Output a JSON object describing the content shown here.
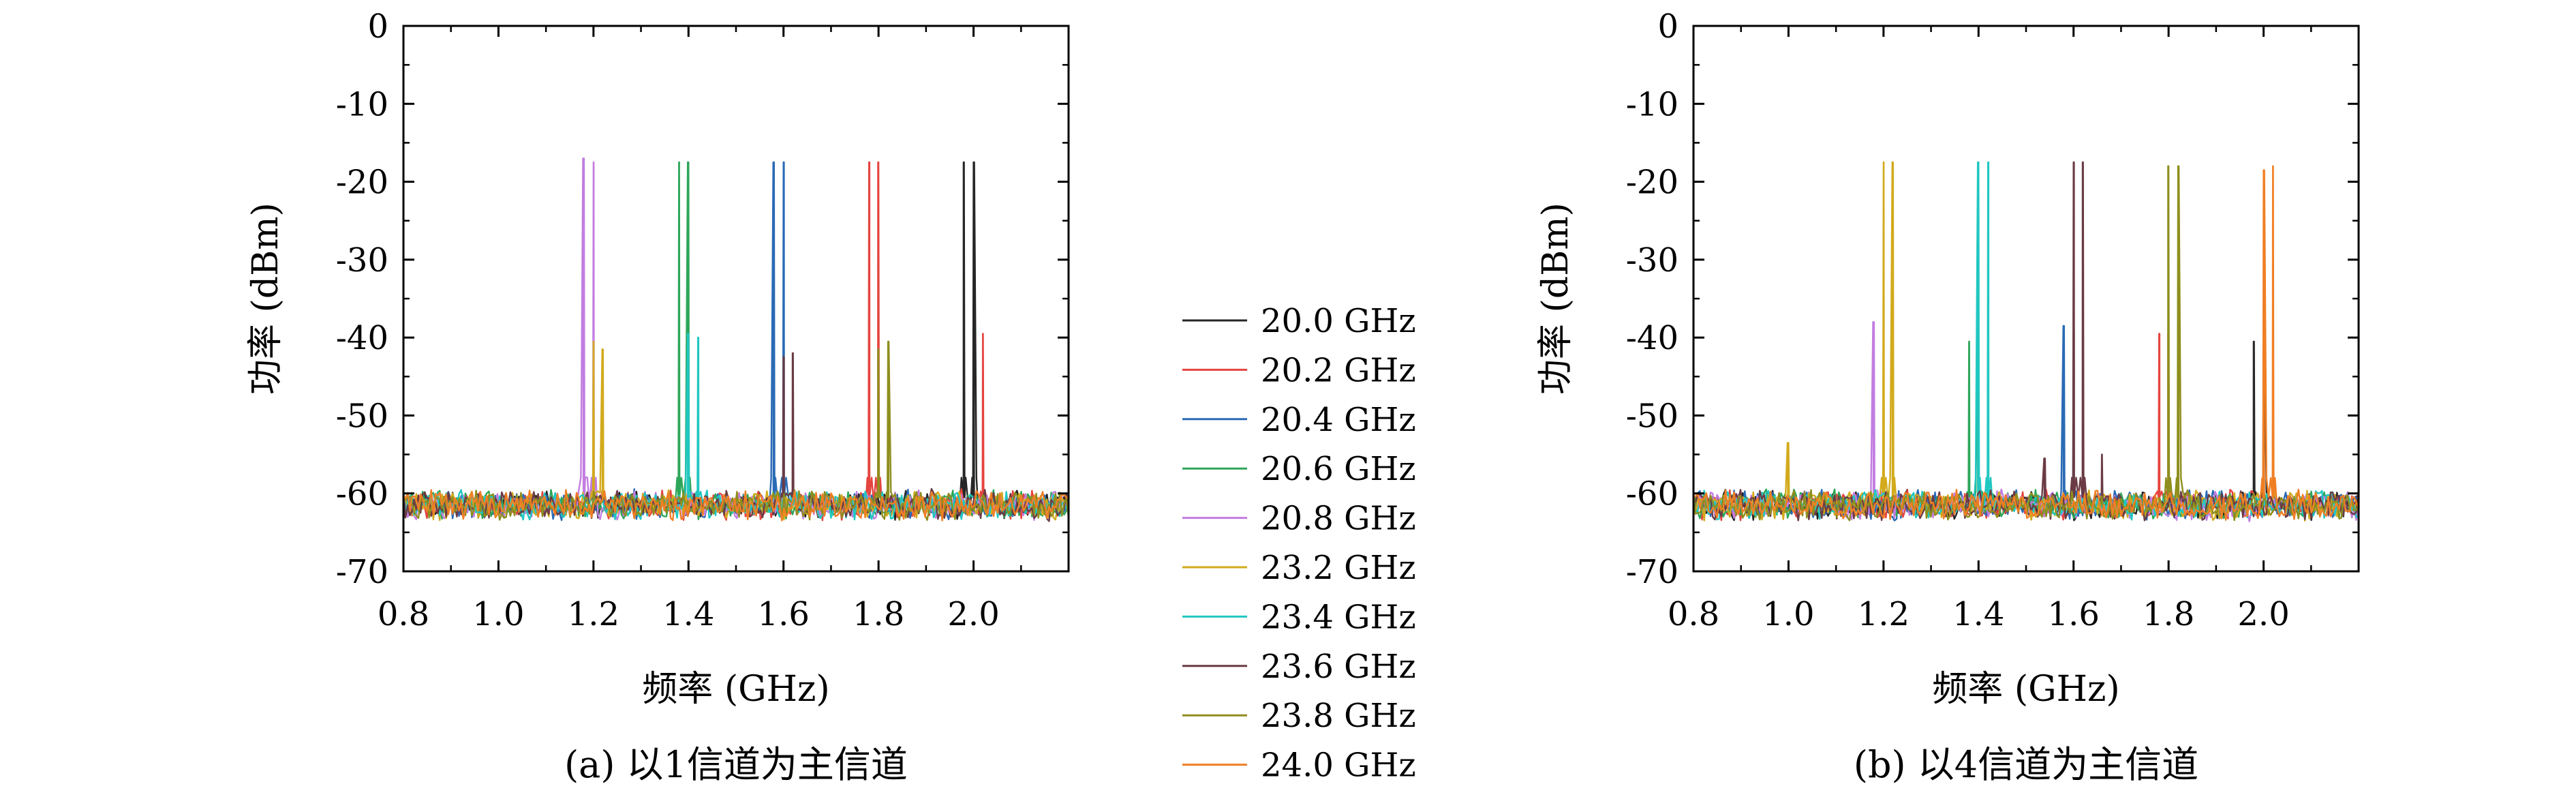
{
  "chart_data": [
    {
      "type": "line",
      "caption": "(a) 以1信道为主信道",
      "xlabel": "频率 (GHz)",
      "ylabel": "功率 (dBm)",
      "xlim": [
        0.8,
        2.2
      ],
      "ylim": [
        -70,
        0
      ],
      "xticks": [
        "0.8",
        "1.0",
        "1.2",
        "1.4",
        "1.6",
        "1.8",
        "2.0"
      ],
      "yticks": [
        "0",
        "-10",
        "-20",
        "-30",
        "-40",
        "-50",
        "-60",
        "-70"
      ],
      "noise_floor_dbm": -61.5,
      "grid": false,
      "series": [
        {
          "name": "20.0 GHz",
          "color": "#262626",
          "peaks": [
            {
              "x": 1.98,
              "y": -17.5
            },
            {
              "x": 2.0,
              "y": -17.5
            }
          ]
        },
        {
          "name": "20.2 GHz",
          "color": "#e5443f",
          "peaks": [
            {
              "x": 1.78,
              "y": -17.5
            },
            {
              "x": 1.8,
              "y": -17.5
            },
            {
              "x": 2.02,
              "y": -39.5
            }
          ]
        },
        {
          "name": "20.4 GHz",
          "color": "#2a6ab5",
          "peaks": [
            {
              "x": 1.58,
              "y": -17.5
            },
            {
              "x": 1.6,
              "y": -17.5
            }
          ]
        },
        {
          "name": "20.6 GHz",
          "color": "#2ea65a",
          "peaks": [
            {
              "x": 1.38,
              "y": -17.5
            },
            {
              "x": 1.4,
              "y": -17.5
            }
          ]
        },
        {
          "name": "20.8 GHz",
          "color": "#c27de0",
          "peaks": [
            {
              "x": 1.18,
              "y": -17
            },
            {
              "x": 1.2,
              "y": -17.5
            }
          ]
        },
        {
          "name": "23.2 GHz",
          "color": "#d2aa1c",
          "peaks": [
            {
              "x": 1.2,
              "y": -40.5
            },
            {
              "x": 1.22,
              "y": -41.5
            }
          ]
        },
        {
          "name": "23.4 GHz",
          "color": "#21c7c1",
          "peaks": [
            {
              "x": 1.4,
              "y": -39.5
            },
            {
              "x": 1.42,
              "y": -40
            }
          ]
        },
        {
          "name": "23.6 GHz",
          "color": "#6a3b44",
          "peaks": [
            {
              "x": 1.6,
              "y": -42.5
            },
            {
              "x": 1.62,
              "y": -42
            }
          ]
        },
        {
          "name": "23.8 GHz",
          "color": "#8e8e1e",
          "peaks": [
            {
              "x": 1.8,
              "y": -41.5
            },
            {
              "x": 1.82,
              "y": -40.5
            }
          ]
        },
        {
          "name": "24.0 GHz",
          "color": "#f07f24",
          "peaks": []
        }
      ]
    },
    {
      "type": "line",
      "caption": "(b) 以4信道为主信道",
      "xlabel": "频率 (GHz)",
      "ylabel": "功率 (dBm)",
      "xlim": [
        0.8,
        2.2
      ],
      "ylim": [
        -70,
        0
      ],
      "xticks": [
        "0.8",
        "1.0",
        "1.2",
        "1.4",
        "1.6",
        "1.8",
        "2.0"
      ],
      "yticks": [
        "0",
        "-10",
        "-20",
        "-30",
        "-40",
        "-50",
        "-60",
        "-70"
      ],
      "noise_floor_dbm": -61.5,
      "grid": false,
      "series": [
        {
          "name": "20.0 GHz",
          "color": "#262626",
          "peaks": [
            {
              "x": 1.98,
              "y": -40.5
            },
            {
              "x": 2.0,
              "y": -40.5
            }
          ]
        },
        {
          "name": "20.2 GHz",
          "color": "#e5443f",
          "peaks": [
            {
              "x": 1.78,
              "y": -39.5
            },
            {
              "x": 1.8,
              "y": -39.5
            }
          ]
        },
        {
          "name": "20.4 GHz",
          "color": "#2a6ab5",
          "peaks": [
            {
              "x": 1.58,
              "y": -38.5
            },
            {
              "x": 1.6,
              "y": -39
            }
          ]
        },
        {
          "name": "20.6 GHz",
          "color": "#2ea65a",
          "peaks": [
            {
              "x": 1.38,
              "y": -40.5
            },
            {
              "x": 1.4,
              "y": -40
            }
          ]
        },
        {
          "name": "20.8 GHz",
          "color": "#c27de0",
          "peaks": [
            {
              "x": 1.18,
              "y": -38
            }
          ]
        },
        {
          "name": "23.2 GHz",
          "color": "#d2aa1c",
          "peaks": [
            {
              "x": 1.2,
              "y": -17.5
            },
            {
              "x": 1.22,
              "y": -17.5
            },
            {
              "x": 1.0,
              "y": -53.5
            }
          ]
        },
        {
          "name": "23.4 GHz",
          "color": "#21c7c1",
          "peaks": [
            {
              "x": 1.4,
              "y": -17.5
            },
            {
              "x": 1.42,
              "y": -17.5
            }
          ]
        },
        {
          "name": "23.6 GHz",
          "color": "#6a3b44",
          "peaks": [
            {
              "x": 1.6,
              "y": -17.5
            },
            {
              "x": 1.62,
              "y": -17.5
            },
            {
              "x": 1.54,
              "y": -55.5
            },
            {
              "x": 1.66,
              "y": -55
            }
          ]
        },
        {
          "name": "23.8 GHz",
          "color": "#8e8e1e",
          "peaks": [
            {
              "x": 1.8,
              "y": -18
            },
            {
              "x": 1.82,
              "y": -18
            }
          ]
        },
        {
          "name": "24.0 GHz",
          "color": "#f07f24",
          "peaks": [
            {
              "x": 2.0,
              "y": -18.5
            },
            {
              "x": 2.02,
              "y": -18
            }
          ]
        }
      ]
    }
  ]
}
